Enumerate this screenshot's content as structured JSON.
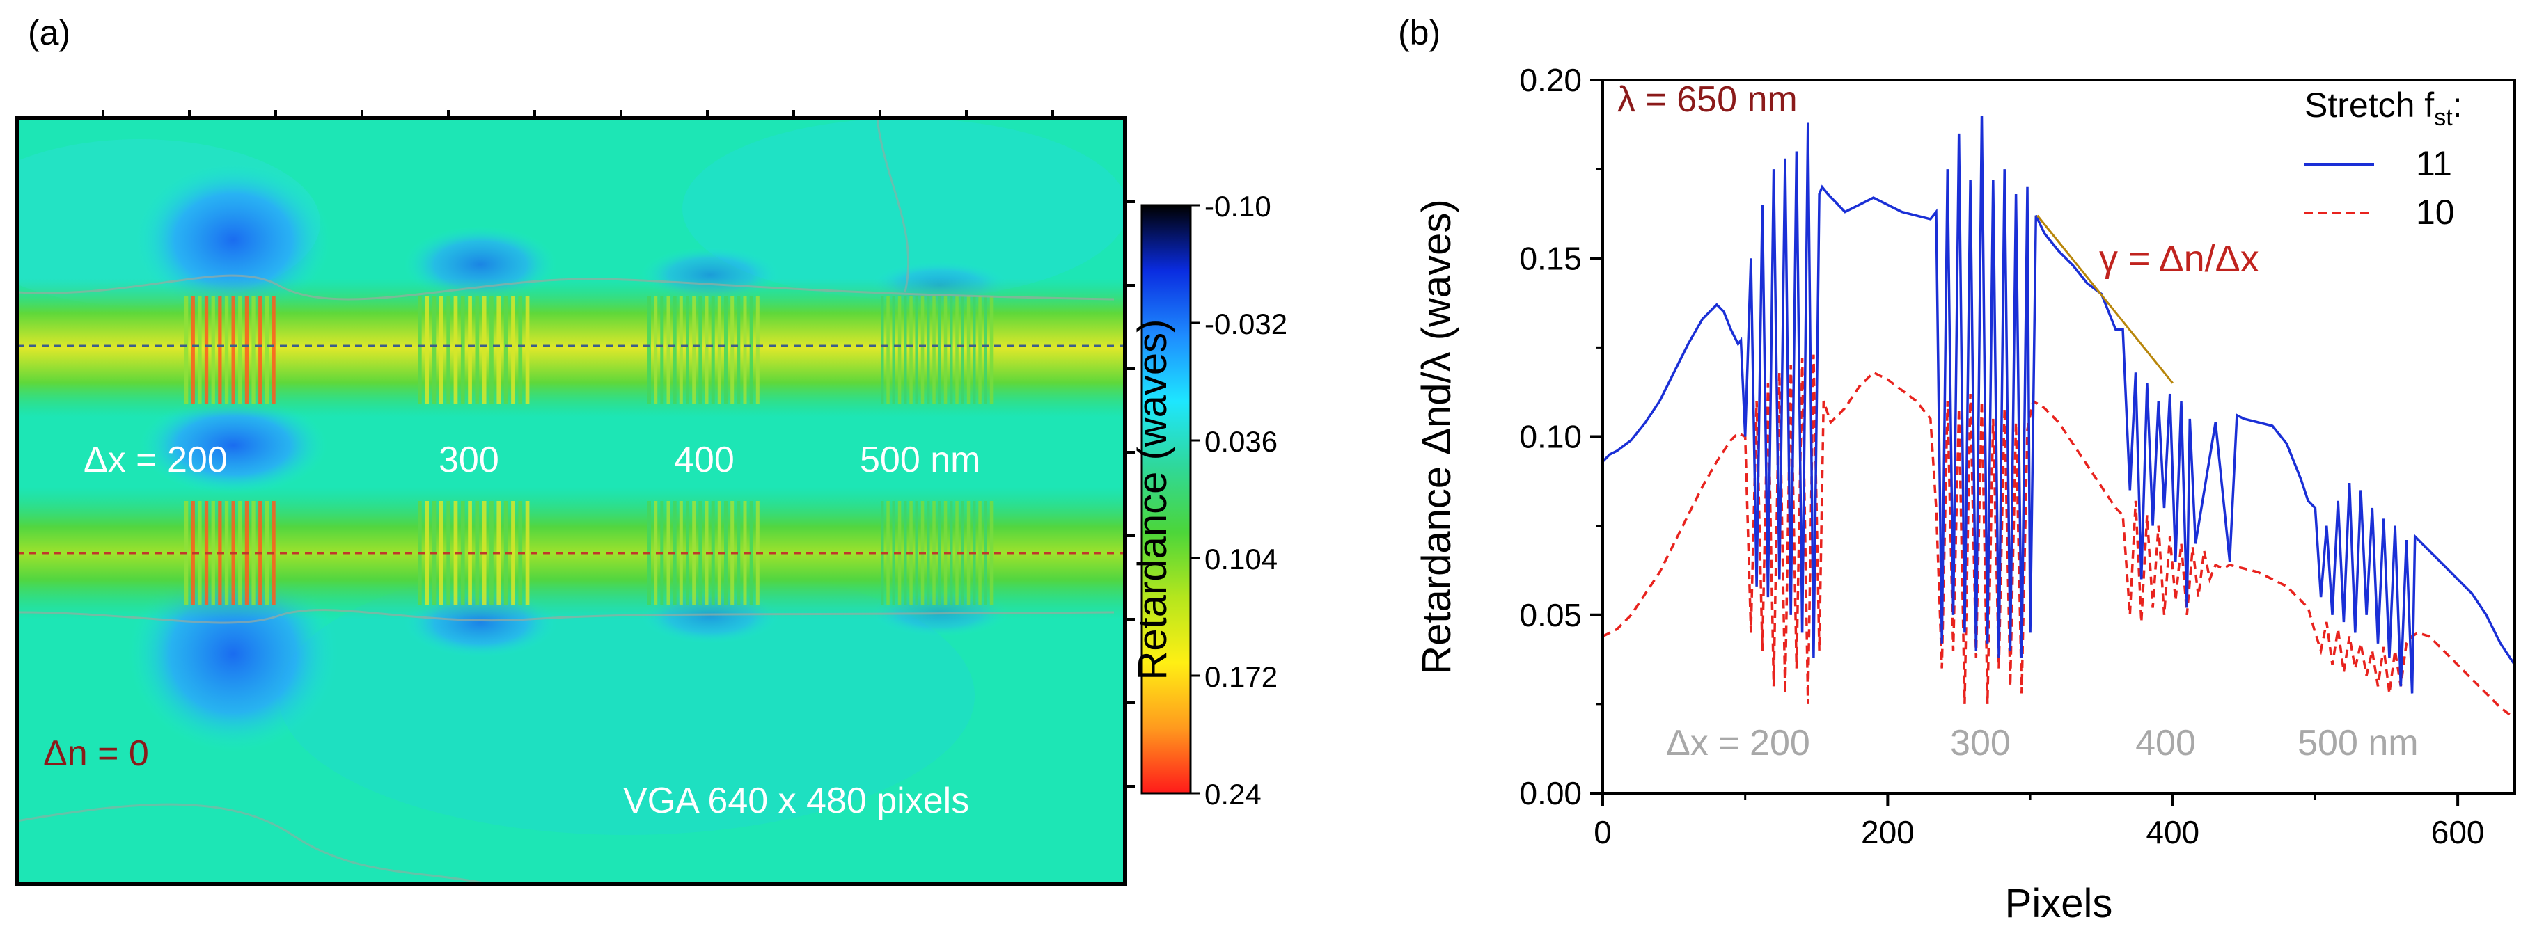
{
  "chart_data": [
    {
      "type": "heatmap",
      "panel_label": "(a)",
      "image_pixels": "VGA 640 x 480 pixels",
      "colorbar": {
        "title": "Retardance (waves)",
        "ticks": [
          "-0.10",
          "-0.032",
          "0.036",
          "0.104",
          "0.172",
          "0.24"
        ],
        "range": [
          -0.1,
          0.24
        ],
        "colors": [
          "#000000",
          "#0a2ce0",
          "#1e8cff",
          "#1ee6ff",
          "#2fd89a",
          "#4cd63a",
          "#b5e61d",
          "#ffef14",
          "#ff9a1e",
          "#ff1a1a"
        ]
      },
      "grating_labels": [
        "Δx = 200",
        "300",
        "400",
        "500 nm"
      ],
      "reference_label": "Δn = 0",
      "background_color": "#1de6b5",
      "line_cut_colors": [
        "#3d5f8a",
        "#c0392b"
      ]
    },
    {
      "type": "line",
      "panel_label": "(b)",
      "xlabel": "Pixels",
      "ylabel": "Retardance Δnd/λ (waves)",
      "xlim": [
        0,
        640
      ],
      "ylim": [
        0,
        0.2
      ],
      "xticks": [
        "0",
        "200",
        "400",
        "600"
      ],
      "yticks": [
        "0.00",
        "0.05",
        "0.10",
        "0.15",
        "0.20"
      ],
      "wavelength_label": "λ = 650 nm",
      "legend_title": "Stretch f",
      "legend_title_sub": "st",
      "legend_title_suffix": ":",
      "annotation": "γ = Δn/Δx",
      "annotation_line": {
        "x": [
          305,
          400
        ],
        "y": [
          0.162,
          0.115
        ]
      },
      "grating_labels": [
        {
          "text": "Δx = 200",
          "x": 95
        },
        {
          "text": "300",
          "x": 265
        },
        {
          "text": "400",
          "x": 395
        },
        {
          "text": "500 nm",
          "x": 530
        }
      ],
      "series": [
        {
          "name": "11",
          "color": "#1a2fd6",
          "dash": "solid",
          "x": [
            0,
            5,
            10,
            20,
            30,
            40,
            50,
            60,
            70,
            80,
            85,
            90,
            95,
            97,
            100,
            104,
            108,
            112,
            116,
            120,
            124,
            128,
            132,
            136,
            140,
            144,
            148,
            152,
            154,
            158,
            170,
            180,
            190,
            200,
            210,
            220,
            230,
            234,
            238,
            242,
            246,
            250,
            254,
            258,
            262,
            266,
            270,
            274,
            278,
            282,
            286,
            290,
            294,
            298,
            300,
            304,
            310,
            320,
            330,
            340,
            350,
            360,
            365,
            370,
            374,
            378,
            382,
            386,
            390,
            394,
            398,
            402,
            406,
            410,
            412,
            416,
            430,
            440,
            445,
            450,
            460,
            470,
            480,
            490,
            495,
            500,
            504,
            508,
            512,
            516,
            520,
            524,
            528,
            532,
            536,
            540,
            544,
            548,
            552,
            556,
            560,
            564,
            568,
            570,
            575,
            580,
            590,
            600,
            610,
            620,
            630,
            640
          ],
          "y": [
            0.093,
            0.095,
            0.096,
            0.099,
            0.104,
            0.11,
            0.118,
            0.126,
            0.133,
            0.137,
            0.135,
            0.13,
            0.126,
            0.127,
            0.1,
            0.15,
            0.058,
            0.165,
            0.055,
            0.175,
            0.06,
            0.178,
            0.05,
            0.18,
            0.045,
            0.188,
            0.038,
            0.168,
            0.17,
            0.168,
            0.163,
            0.165,
            0.167,
            0.165,
            0.163,
            0.162,
            0.161,
            0.163,
            0.042,
            0.175,
            0.05,
            0.185,
            0.045,
            0.172,
            0.04,
            0.19,
            0.042,
            0.172,
            0.038,
            0.175,
            0.04,
            0.168,
            0.038,
            0.17,
            0.045,
            0.162,
            0.157,
            0.152,
            0.148,
            0.143,
            0.14,
            0.13,
            0.13,
            0.085,
            0.118,
            0.06,
            0.115,
            0.075,
            0.11,
            0.08,
            0.112,
            0.065,
            0.11,
            0.052,
            0.105,
            0.07,
            0.104,
            0.065,
            0.106,
            0.105,
            0.104,
            0.103,
            0.098,
            0.088,
            0.082,
            0.08,
            0.055,
            0.075,
            0.05,
            0.082,
            0.048,
            0.087,
            0.045,
            0.085,
            0.05,
            0.08,
            0.042,
            0.077,
            0.038,
            0.075,
            0.03,
            0.071,
            0.028,
            0.072,
            0.07,
            0.068,
            0.064,
            0.06,
            0.056,
            0.05,
            0.042,
            0.036
          ]
        },
        {
          "name": "10",
          "color": "#e8231e",
          "dash": "dashed",
          "x": [
            0,
            10,
            20,
            30,
            40,
            50,
            60,
            70,
            80,
            90,
            95,
            100,
            104,
            108,
            112,
            116,
            120,
            124,
            128,
            132,
            136,
            140,
            144,
            148,
            152,
            155,
            160,
            170,
            180,
            190,
            200,
            210,
            220,
            230,
            234,
            238,
            242,
            246,
            250,
            254,
            258,
            262,
            266,
            270,
            274,
            278,
            282,
            286,
            290,
            294,
            298,
            302,
            310,
            320,
            330,
            340,
            350,
            360,
            365,
            370,
            374,
            378,
            382,
            386,
            390,
            394,
            398,
            402,
            406,
            410,
            414,
            418,
            422,
            426,
            430,
            435,
            440,
            450,
            460,
            470,
            480,
            490,
            495,
            500,
            504,
            508,
            512,
            516,
            520,
            524,
            528,
            532,
            536,
            540,
            544,
            548,
            552,
            556,
            560,
            564,
            568,
            572,
            580,
            590,
            600,
            610,
            620,
            630,
            640
          ],
          "y": [
            0.044,
            0.046,
            0.05,
            0.056,
            0.062,
            0.07,
            0.078,
            0.086,
            0.093,
            0.099,
            0.101,
            0.1,
            0.045,
            0.11,
            0.04,
            0.115,
            0.03,
            0.118,
            0.028,
            0.12,
            0.035,
            0.122,
            0.025,
            0.123,
            0.04,
            0.11,
            0.104,
            0.108,
            0.114,
            0.118,
            0.116,
            0.113,
            0.11,
            0.105,
            0.08,
            0.035,
            0.11,
            0.04,
            0.108,
            0.025,
            0.112,
            0.038,
            0.11,
            0.025,
            0.105,
            0.035,
            0.108,
            0.03,
            0.104,
            0.028,
            0.102,
            0.11,
            0.108,
            0.104,
            0.098,
            0.092,
            0.086,
            0.08,
            0.078,
            0.05,
            0.082,
            0.048,
            0.078,
            0.052,
            0.075,
            0.05,
            0.072,
            0.054,
            0.07,
            0.05,
            0.069,
            0.055,
            0.068,
            0.06,
            0.064,
            0.063,
            0.064,
            0.063,
            0.062,
            0.06,
            0.058,
            0.054,
            0.052,
            0.045,
            0.04,
            0.048,
            0.036,
            0.046,
            0.034,
            0.044,
            0.035,
            0.042,
            0.033,
            0.04,
            0.03,
            0.041,
            0.028,
            0.04,
            0.03,
            0.042,
            0.044,
            0.045,
            0.044,
            0.04,
            0.036,
            0.032,
            0.028,
            0.024,
            0.021
          ]
        }
      ]
    }
  ]
}
